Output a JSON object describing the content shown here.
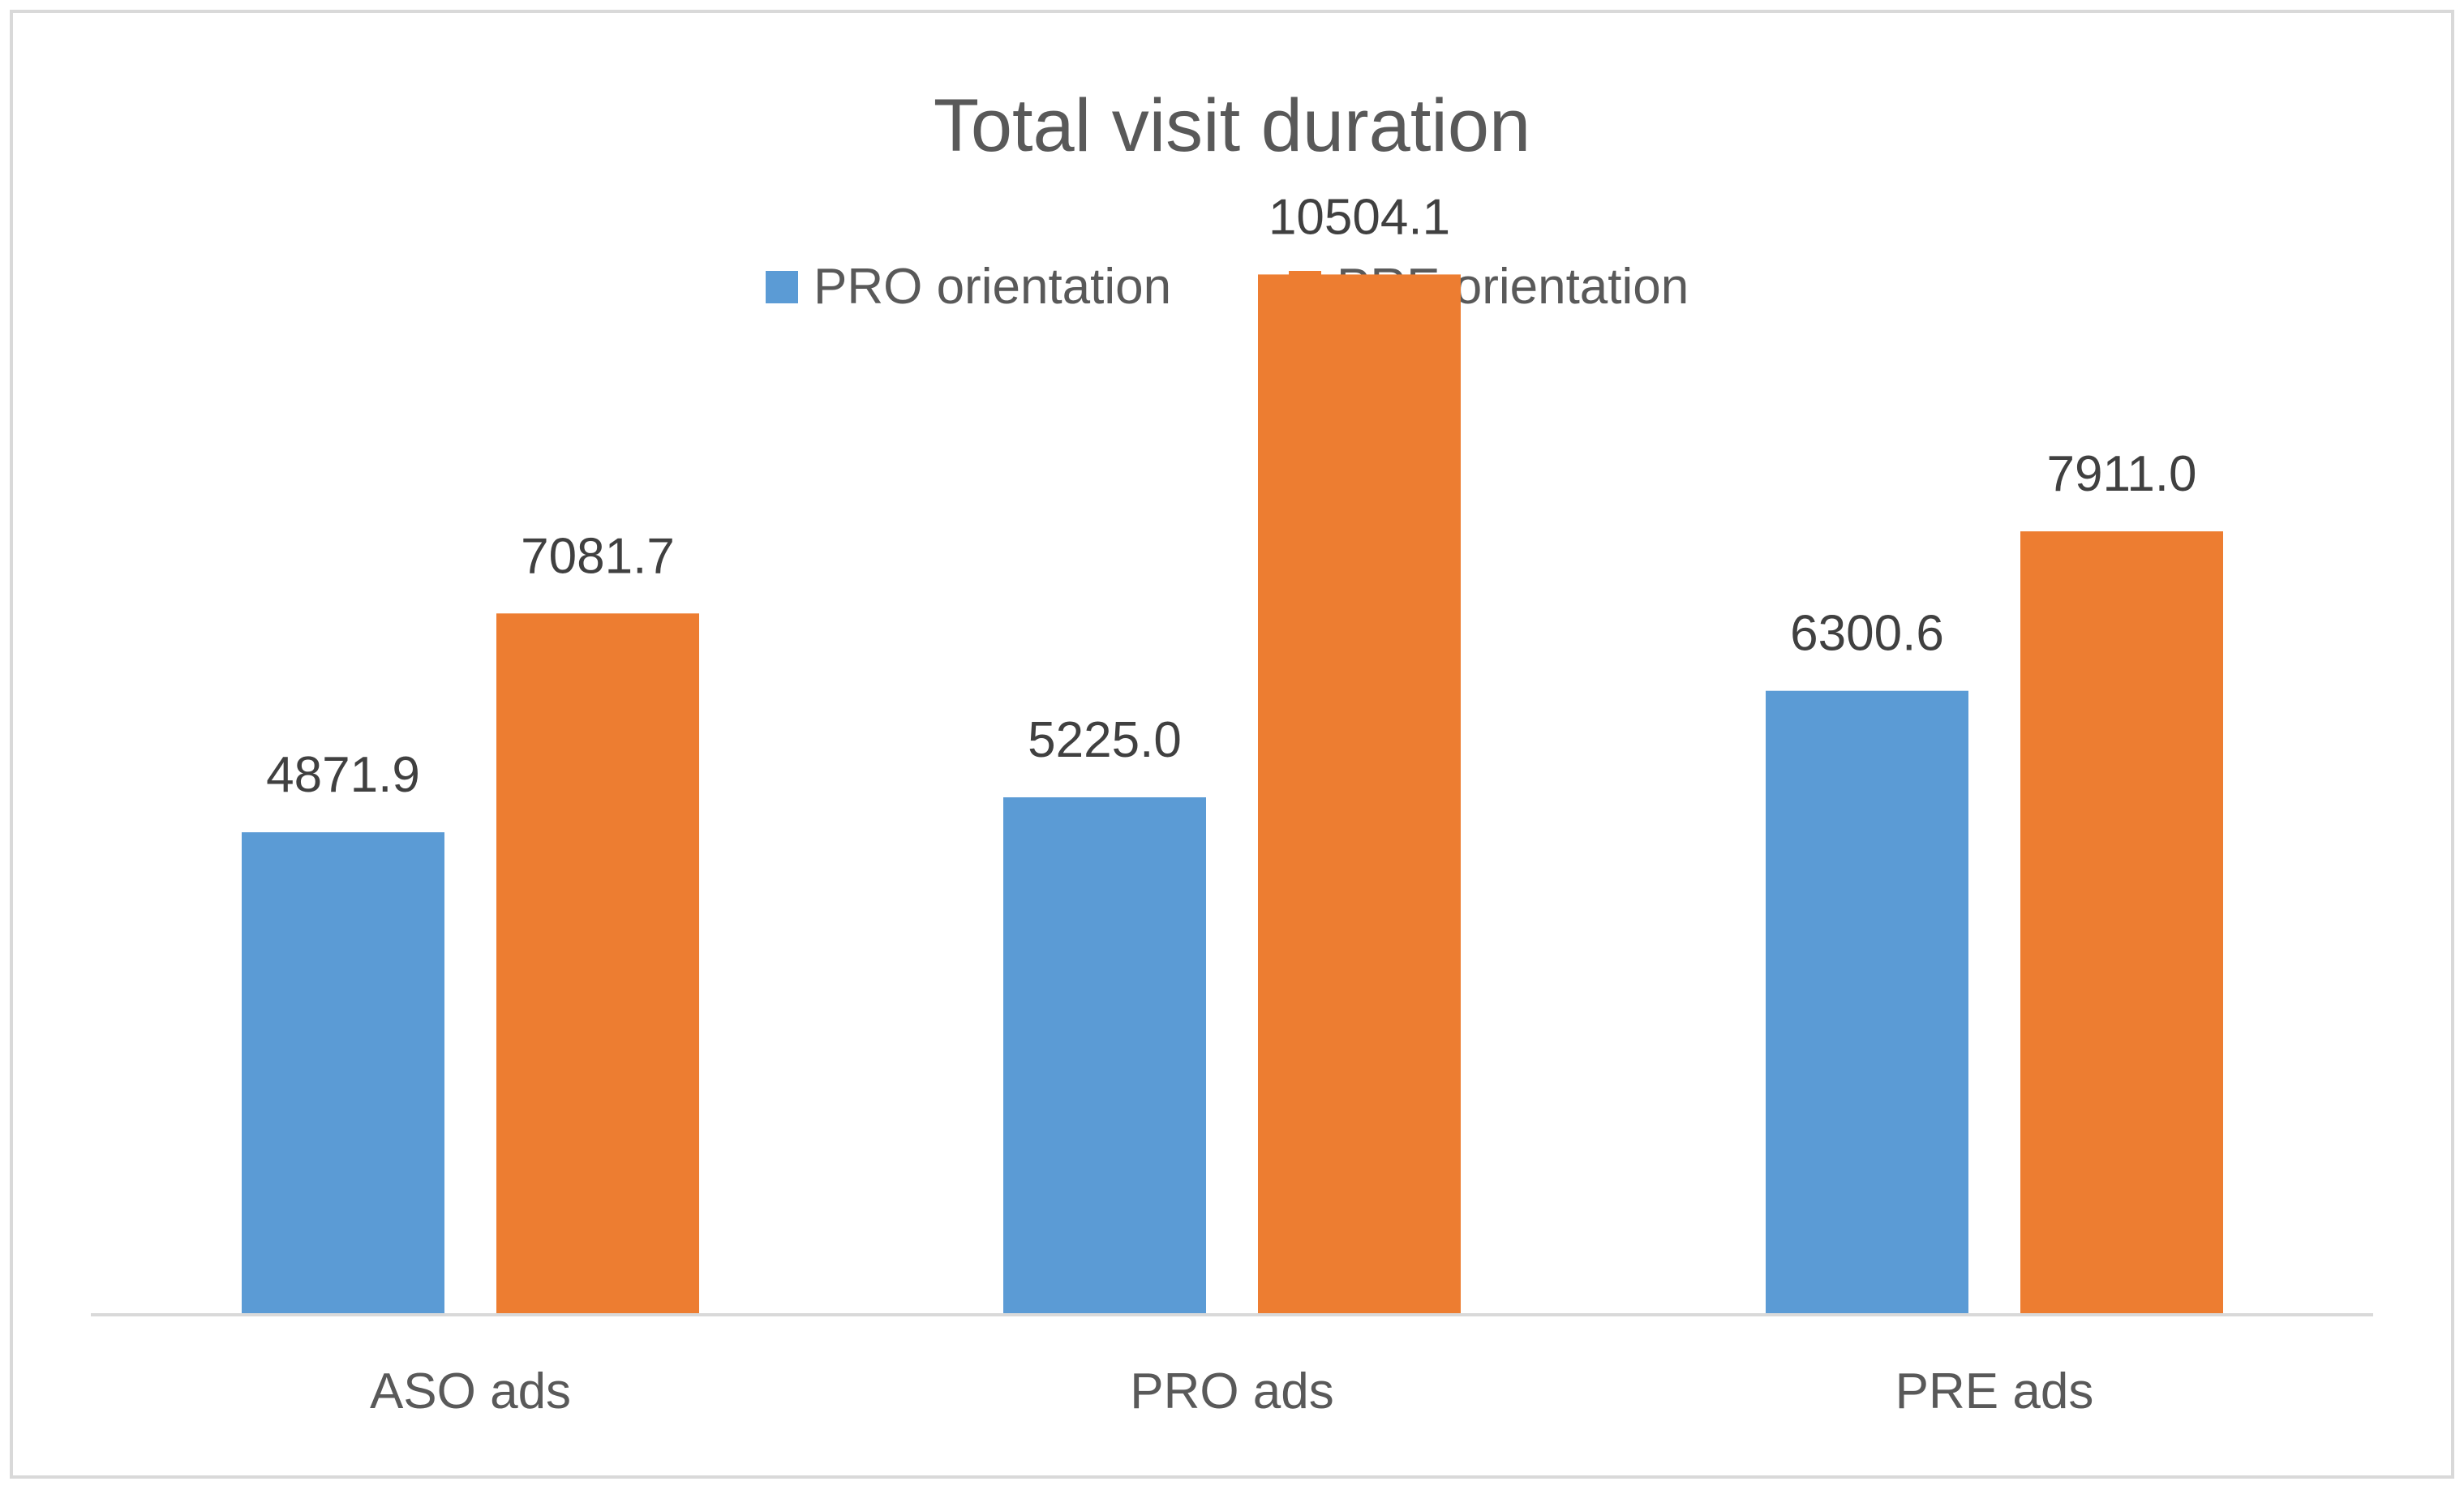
{
  "chart_data": {
    "type": "bar",
    "title": "Total visit duration",
    "categories": [
      "ASO ads",
      "PRO ads",
      "PRE ads"
    ],
    "series": [
      {
        "name": "PRO orientation",
        "color": "#5b9bd5",
        "values": [
          4871.9,
          5225.0,
          6300.6
        ],
        "labels": [
          "4871.9",
          "5225.0",
          "6300.6"
        ]
      },
      {
        "name": "PRE orientation",
        "color": "#ed7d31",
        "values": [
          7081.7,
          10504.1,
          7911.0
        ],
        "labels": [
          "7081.7",
          "10504.1",
          "7911.0"
        ]
      }
    ],
    "ylim": [
      0,
      14000
    ],
    "grid": false,
    "legend_position": "top",
    "data_labels": true
  }
}
